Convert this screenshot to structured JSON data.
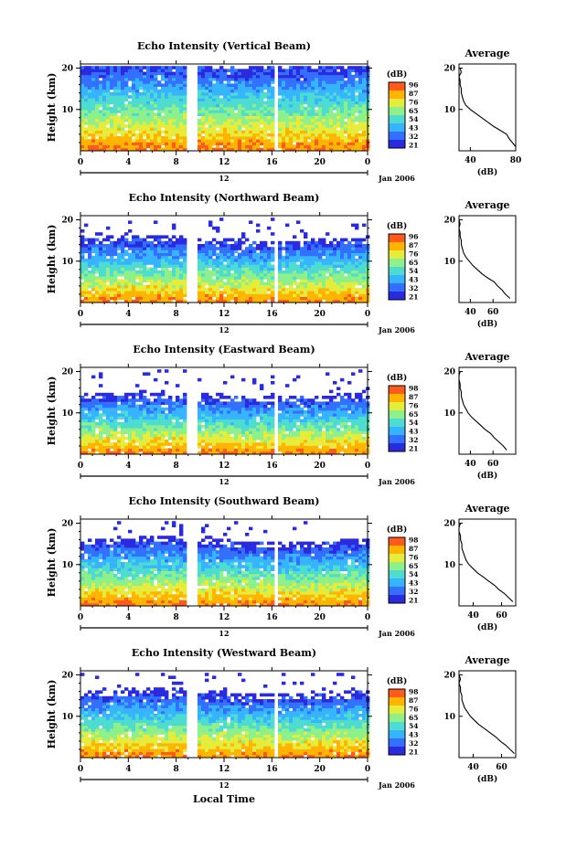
{
  "figure": {
    "xlabel": "Local Time",
    "date_label": "Jan 2006",
    "colorbar_unit": "(dB)",
    "profile_title": "Average",
    "profile_xlabel": "(dB)",
    "ylabel": "Height (km)",
    "mid_date_label": "12"
  },
  "chart_data": [
    {
      "type": "heatmap",
      "title": "Echo Intensity (Vertical Beam)",
      "ylabel": "Height (km)",
      "xlabel": "Local Time",
      "x_ticks": [
        "0",
        "4",
        "8",
        "12",
        "16",
        "20",
        "0"
      ],
      "y_ticks": [
        "20",
        "10"
      ],
      "colorbar_ticks": [
        "96",
        "87",
        "76",
        "65",
        "54",
        "43",
        "32",
        "21"
      ],
      "top_edge_km": 20.5,
      "data_gap_hours": [
        8.7,
        9.5
      ],
      "data_gap_hours_2": [
        16.2,
        16.5
      ],
      "avg_profile": {
        "xlim": [
          30,
          80
        ],
        "x_ticks": [
          "40",
          "80"
        ],
        "height_km": [
          1,
          2,
          3,
          4,
          5,
          6,
          7,
          8,
          9,
          10,
          11,
          12,
          13,
          14,
          15,
          16,
          17,
          18,
          19,
          20
        ],
        "db": [
          80,
          77,
          74,
          72,
          66,
          60,
          55,
          50,
          45,
          40,
          36,
          34,
          33,
          32,
          32,
          31,
          31,
          30,
          32,
          31
        ]
      }
    },
    {
      "type": "heatmap",
      "title": "Echo Intensity (Northward Beam)",
      "ylabel": "Height (km)",
      "xlabel": "Local Time",
      "x_ticks": [
        "0",
        "4",
        "8",
        "12",
        "16",
        "20",
        "0"
      ],
      "y_ticks": [
        "20",
        "10"
      ],
      "colorbar_ticks": [
        "96",
        "87",
        "76",
        "65",
        "54",
        "43",
        "32",
        "21"
      ],
      "top_edge_km": 14.5,
      "data_gap_hours": [
        8.7,
        9.5
      ],
      "data_gap_hours_2": [
        16.2,
        16.5
      ],
      "avg_profile": {
        "xlim": [
          30,
          80
        ],
        "x_ticks": [
          "40",
          "60"
        ],
        "height_km": [
          1,
          2,
          3,
          4,
          5,
          6,
          7,
          8,
          9,
          10,
          11,
          12,
          13,
          14,
          15,
          16,
          17,
          18,
          19,
          20
        ],
        "db": [
          75,
          71,
          68,
          64,
          61,
          55,
          50,
          46,
          42,
          39,
          36,
          34,
          33,
          32,
          32,
          31,
          31,
          30,
          31,
          30
        ]
      }
    },
    {
      "type": "heatmap",
      "title": "Echo Intensity (Eastward Beam)",
      "ylabel": "Height (km)",
      "xlabel": "Local Time",
      "x_ticks": [
        "0",
        "4",
        "8",
        "12",
        "16",
        "20",
        "0"
      ],
      "y_ticks": [
        "20",
        "10"
      ],
      "colorbar_ticks": [
        "98",
        "87",
        "76",
        "65",
        "54",
        "43",
        "32",
        "21"
      ],
      "top_edge_km": 13.5,
      "data_gap_hours": [
        8.7,
        9.5
      ],
      "data_gap_hours_2": [
        16.2,
        16.5
      ],
      "avg_profile": {
        "xlim": [
          30,
          80
        ],
        "x_ticks": [
          "40",
          "60"
        ],
        "height_km": [
          1,
          2,
          3,
          4,
          5,
          6,
          7,
          8,
          9,
          10,
          11,
          12,
          13,
          14,
          15,
          16,
          17,
          18,
          19,
          20
        ],
        "db": [
          72,
          69,
          65,
          61,
          58,
          53,
          49,
          45,
          41,
          38,
          36,
          34,
          33,
          32,
          32,
          31,
          31,
          30,
          30,
          31
        ]
      }
    },
    {
      "type": "heatmap",
      "title": "Echo Intensity (Southward Beam)",
      "ylabel": "Height (km)",
      "xlabel": "Local Time",
      "x_ticks": [
        "0",
        "4",
        "8",
        "12",
        "16",
        "20",
        "0"
      ],
      "y_ticks": [
        "20",
        "10"
      ],
      "colorbar_ticks": [
        "98",
        "87",
        "76",
        "65",
        "54",
        "43",
        "32",
        "21"
      ],
      "top_edge_km": 15.0,
      "data_gap_hours": [
        8.7,
        9.5
      ],
      "data_gap_hours_2": [
        16.2,
        16.5
      ],
      "avg_profile": {
        "xlim": [
          30,
          70
        ],
        "x_ticks": [
          "40",
          "60"
        ],
        "height_km": [
          1,
          2,
          3,
          4,
          5,
          6,
          7,
          8,
          9,
          10,
          11,
          12,
          13,
          14,
          15,
          16,
          17,
          18,
          19,
          20
        ],
        "db": [
          68,
          65,
          62,
          58,
          55,
          51,
          47,
          43,
          40,
          37,
          35,
          34,
          33,
          32,
          32,
          31,
          31,
          30,
          30,
          31
        ]
      }
    },
    {
      "type": "heatmap",
      "title": "Echo Intensity (Westward Beam)",
      "ylabel": "Height (km)",
      "xlabel": "Local Time",
      "x_ticks": [
        "0",
        "4",
        "8",
        "12",
        "16",
        "20",
        "0"
      ],
      "y_ticks": [
        "20",
        "10"
      ],
      "colorbar_ticks": [
        "98",
        "87",
        "76",
        "65",
        "54",
        "43",
        "32",
        "21"
      ],
      "top_edge_km": 15.0,
      "data_gap_hours": [
        8.7,
        9.5
      ],
      "data_gap_hours_2": [
        16.2,
        16.5
      ],
      "avg_profile": {
        "xlim": [
          30,
          70
        ],
        "x_ticks": [
          "40",
          "60"
        ],
        "height_km": [
          1,
          2,
          3,
          4,
          5,
          6,
          7,
          8,
          9,
          10,
          11,
          12,
          13,
          14,
          15,
          16,
          17,
          18,
          19,
          20
        ],
        "db": [
          69,
          66,
          63,
          59,
          56,
          52,
          48,
          44,
          41,
          38,
          36,
          34,
          33,
          32,
          32,
          31,
          31,
          30,
          31,
          30
        ]
      }
    }
  ],
  "colors": {
    "colormap": [
      "#2a2ae0",
      "#3370ff",
      "#36b4ff",
      "#4fdcd0",
      "#8ef08a",
      "#e6ec3c",
      "#ffb400",
      "#ff5a1e"
    ],
    "line": "#000000",
    "gap": "#ffffff"
  }
}
